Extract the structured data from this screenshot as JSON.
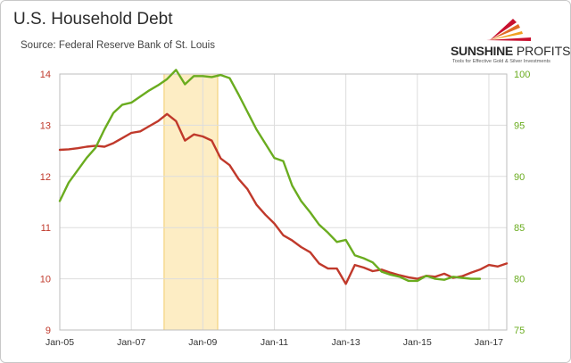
{
  "title": "U.S. Household Debt",
  "subtitle": "Source: Federal Reserve Bank of St. Louis",
  "logo": {
    "name_bold": "SUNSHINE",
    "name_light": "PROFITS",
    "tagline": "Tools for Effective Gold & Silver Investments"
  },
  "colors": {
    "left_series": "#c0392b",
    "right_series": "#6aac1f",
    "recession": "#fdedc4",
    "recession_border": "#f2cb6a",
    "grid": "#dddddd"
  },
  "chart_data": {
    "type": "line",
    "x_tick_labels": [
      "Jan-05",
      "Jan-07",
      "Jan-09",
      "Jan-11",
      "Jan-13",
      "Jan-15",
      "Jan-17"
    ],
    "x_range": [
      "2005-01",
      "2017-07"
    ],
    "recession_band": [
      "2007-12",
      "2009-06"
    ],
    "y_left": {
      "range": [
        9,
        14
      ],
      "ticks": [
        9,
        10,
        11,
        12,
        13,
        14
      ],
      "color": "#c0392b"
    },
    "y_right": {
      "range": [
        75,
        100
      ],
      "ticks": [
        75,
        80,
        85,
        90,
        95,
        100
      ],
      "color": "#6aac1f"
    },
    "grid": true,
    "series": [
      {
        "axis": "left",
        "color": "#c0392b",
        "points": [
          [
            "2005-01",
            12.52
          ],
          [
            "2005-04",
            12.53
          ],
          [
            "2005-07",
            12.55
          ],
          [
            "2005-10",
            12.58
          ],
          [
            "2006-01",
            12.6
          ],
          [
            "2006-04",
            12.58
          ],
          [
            "2006-07",
            12.65
          ],
          [
            "2006-10",
            12.75
          ],
          [
            "2007-01",
            12.85
          ],
          [
            "2007-04",
            12.88
          ],
          [
            "2007-07",
            12.98
          ],
          [
            "2007-10",
            13.08
          ],
          [
            "2008-01",
            13.22
          ],
          [
            "2008-04",
            13.08
          ],
          [
            "2008-07",
            12.7
          ],
          [
            "2008-10",
            12.82
          ],
          [
            "2009-01",
            12.78
          ],
          [
            "2009-04",
            12.7
          ],
          [
            "2009-07",
            12.35
          ],
          [
            "2009-10",
            12.22
          ],
          [
            "2010-01",
            11.95
          ],
          [
            "2010-04",
            11.75
          ],
          [
            "2010-07",
            11.45
          ],
          [
            "2010-10",
            11.25
          ],
          [
            "2011-01",
            11.08
          ],
          [
            "2011-04",
            10.85
          ],
          [
            "2011-07",
            10.75
          ],
          [
            "2011-10",
            10.62
          ],
          [
            "2012-01",
            10.52
          ],
          [
            "2012-04",
            10.3
          ],
          [
            "2012-07",
            10.2
          ],
          [
            "2012-10",
            10.2
          ],
          [
            "2013-01",
            9.9
          ],
          [
            "2013-04",
            10.27
          ],
          [
            "2013-07",
            10.22
          ],
          [
            "2013-10",
            10.15
          ],
          [
            "2014-01",
            10.18
          ],
          [
            "2014-04",
            10.12
          ],
          [
            "2014-07",
            10.07
          ],
          [
            "2014-10",
            10.03
          ],
          [
            "2015-01",
            10.0
          ],
          [
            "2015-04",
            10.06
          ],
          [
            "2015-07",
            10.04
          ],
          [
            "2015-10",
            10.1
          ],
          [
            "2016-01",
            10.02
          ],
          [
            "2016-04",
            10.05
          ],
          [
            "2016-07",
            10.12
          ],
          [
            "2016-10",
            10.18
          ],
          [
            "2017-01",
            10.27
          ],
          [
            "2017-04",
            10.24
          ],
          [
            "2017-07",
            10.3
          ]
        ]
      },
      {
        "axis": "right",
        "color": "#6aac1f",
        "points": [
          [
            "2005-01",
            87.6
          ],
          [
            "2005-04",
            89.4
          ],
          [
            "2005-07",
            90.6
          ],
          [
            "2005-10",
            91.8
          ],
          [
            "2006-01",
            92.8
          ],
          [
            "2006-04",
            94.6
          ],
          [
            "2006-07",
            96.2
          ],
          [
            "2006-10",
            97.0
          ],
          [
            "2007-01",
            97.2
          ],
          [
            "2007-04",
            97.8
          ],
          [
            "2007-07",
            98.4
          ],
          [
            "2007-10",
            98.9
          ],
          [
            "2008-01",
            99.5
          ],
          [
            "2008-04",
            100.4
          ],
          [
            "2008-07",
            99.0
          ],
          [
            "2008-10",
            99.8
          ],
          [
            "2009-01",
            99.8
          ],
          [
            "2009-04",
            99.7
          ],
          [
            "2009-07",
            99.9
          ],
          [
            "2009-10",
            99.6
          ],
          [
            "2010-01",
            98.0
          ],
          [
            "2010-04",
            96.3
          ],
          [
            "2010-07",
            94.6
          ],
          [
            "2010-10",
            93.2
          ],
          [
            "2011-01",
            91.8
          ],
          [
            "2011-04",
            91.5
          ],
          [
            "2011-07",
            89.1
          ],
          [
            "2011-10",
            87.6
          ],
          [
            "2012-01",
            86.5
          ],
          [
            "2012-04",
            85.3
          ],
          [
            "2012-07",
            84.5
          ],
          [
            "2012-10",
            83.6
          ],
          [
            "2013-01",
            83.8
          ],
          [
            "2013-04",
            82.3
          ],
          [
            "2013-07",
            82.0
          ],
          [
            "2013-10",
            81.6
          ],
          [
            "2014-01",
            80.7
          ],
          [
            "2014-04",
            80.4
          ],
          [
            "2014-07",
            80.2
          ],
          [
            "2014-10",
            79.8
          ],
          [
            "2015-01",
            79.8
          ],
          [
            "2015-04",
            80.3
          ],
          [
            "2015-07",
            80.0
          ],
          [
            "2015-10",
            79.9
          ],
          [
            "2016-01",
            80.2
          ],
          [
            "2016-04",
            80.1
          ],
          [
            "2016-07",
            80.0
          ],
          [
            "2016-10",
            80.0
          ]
        ]
      }
    ]
  }
}
